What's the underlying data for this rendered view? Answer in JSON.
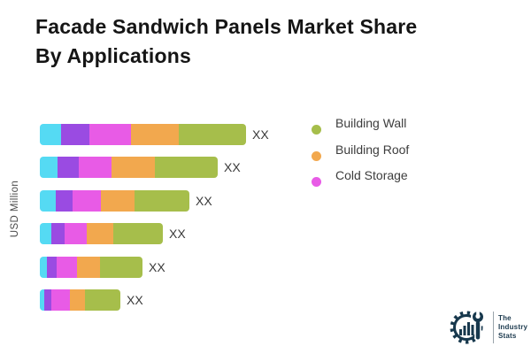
{
  "title": {
    "line1": "Facade Sandwich Panels Market Share",
    "line2": "By Applications"
  },
  "chart_data": {
    "type": "bar",
    "orientation": "horizontal",
    "stacked": true,
    "ylabel": "USD Million",
    "grid": false,
    "value_label": "XX",
    "legend_position": "right",
    "segment_colors": [
      "#55DAF3",
      "#9A4BE2",
      "#E85BE6",
      "#F2A84E",
      "#A6BE4B"
    ],
    "legend": [
      {
        "label": "Building Wall",
        "color": "#A6BE4B"
      },
      {
        "label": "Building Roof",
        "color": "#F2A84E"
      },
      {
        "label": "Cold Storage",
        "color": "#E85BE6"
      }
    ],
    "bars": [
      {
        "segment_widths": [
          24,
          32,
          47,
          54,
          76
        ]
      },
      {
        "segment_widths": [
          20,
          24,
          37,
          49,
          71
        ]
      },
      {
        "segment_widths": [
          18,
          19,
          32,
          38,
          62
        ]
      },
      {
        "segment_widths": [
          13,
          15,
          25,
          30,
          56
        ]
      },
      {
        "segment_widths": [
          8,
          11,
          23,
          26,
          48
        ]
      },
      {
        "segment_widths": [
          5,
          8,
          21,
          17,
          40
        ]
      }
    ]
  },
  "logo": {
    "line1": "The",
    "line2": "Industry",
    "line3": "Stats"
  }
}
